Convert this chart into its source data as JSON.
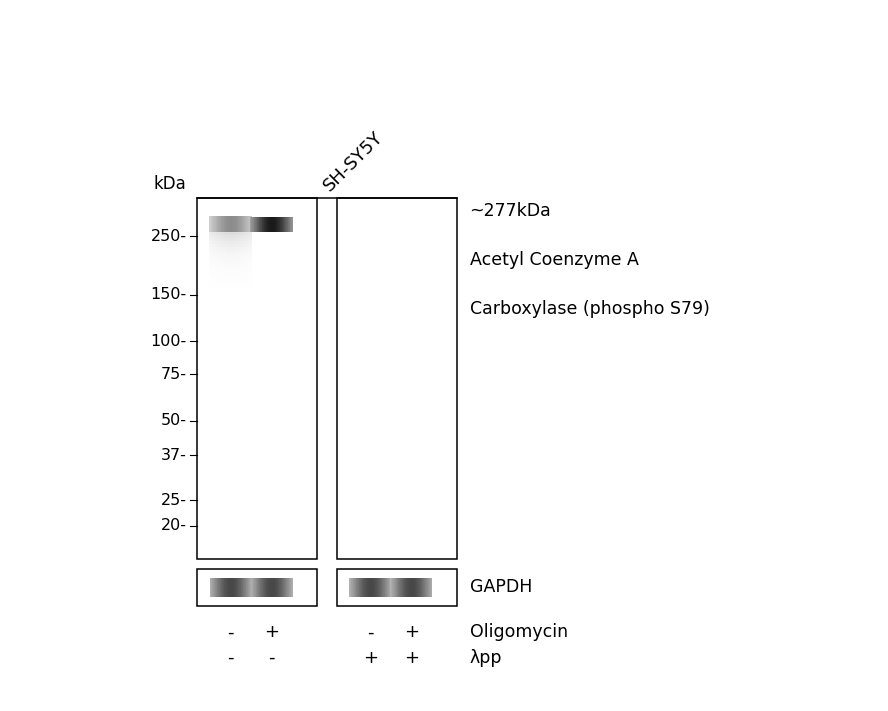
{
  "background_color": "#ffffff",
  "kda_labels": [
    "250-",
    "150-",
    "100-",
    "75-",
    "50-",
    "37-",
    "25-",
    "20-"
  ],
  "kda_values": [
    250,
    150,
    100,
    75,
    50,
    37,
    25,
    20
  ],
  "kda_label_top": "kDa",
  "band_label": "~277kDa",
  "protein_label_line1": "Acetyl Coenzyme A",
  "protein_label_line2": "Carboxylase (phospho S79)",
  "gapdh_label": "GAPDH",
  "oligomycin_label": "Oligomycin",
  "lambda_pp_label": "λpp",
  "lane_header": "SH-SY5Y",
  "lane_signs_oligo": [
    "-",
    "+",
    "-",
    "+"
  ],
  "lane_signs_lpp": [
    "-",
    "-",
    "+",
    "+"
  ],
  "log_min": 1.176,
  "log_max": 2.544,
  "panel1_lanes": [
    0.28,
    0.62
  ],
  "panel2_lanes": [
    0.28,
    0.62
  ],
  "band_kda": 277,
  "gapdh_kda": 37,
  "lane1_main_intensity": 0.45,
  "lane2_main_intensity": 0.9,
  "gapdh_intensity": 0.72
}
